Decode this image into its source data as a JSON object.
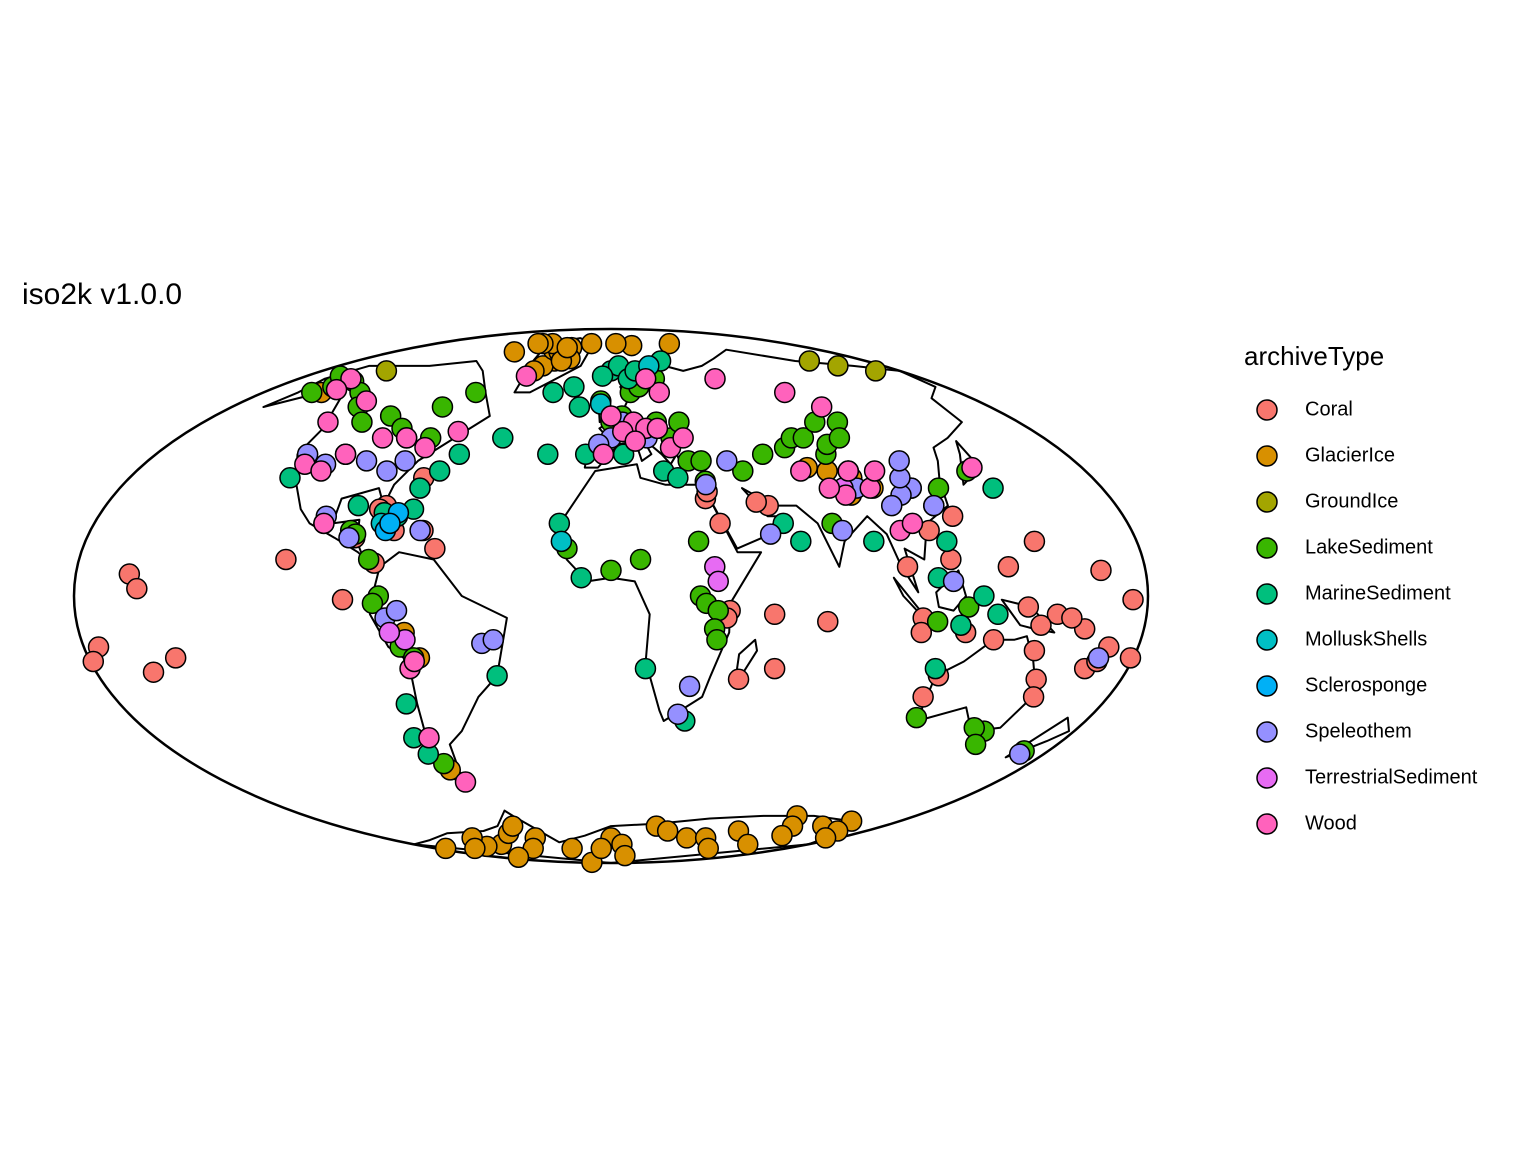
{
  "chart_data": {
    "type": "scatter",
    "projection": "mollweide",
    "title": "iso2k v1.0.0",
    "legend_title": "archiveType",
    "series": [
      {
        "name": "Coral",
        "color": "#F8766D",
        "lon": [
          -162,
          -159,
          -175,
          -150,
          -160,
          -110,
          -80,
          -75,
          -65,
          -88,
          -80,
          -90,
          -60,
          34,
          35,
          38,
          55,
          73,
          57,
          45,
          40,
          39,
          110,
          115,
          120,
          100,
          105,
          145,
          140,
          150,
          160,
          170,
          179,
          -179,
          175,
          165,
          105,
          115,
          113,
          150,
          145,
          153,
          120,
          130,
          134,
          145,
          165,
          168,
          155,
          56,
          52,
          -82,
          -70
        ],
        "lat": [
          6,
          2,
          -14,
          -17,
          -21,
          10,
          25,
          18,
          18,
          16,
          9,
          -1,
          13,
          27,
          29,
          20,
          -5,
          -7,
          -20,
          -23,
          -4,
          -6,
          18,
          10,
          22,
          8,
          -6,
          15,
          -3,
          -5,
          -9,
          -14,
          -17,
          -18,
          -1,
          7,
          -10,
          -22,
          -28,
          -23,
          -15,
          -28,
          -10,
          -12,
          8,
          -8,
          -20,
          -18,
          -6,
          25,
          26,
          24,
          33
        ]
      },
      {
        "name": "GlacierIce",
        "color": "#D89000",
        "lon": [
          -40,
          -38,
          -45,
          -50,
          -36,
          -43,
          -30,
          -48,
          -60,
          -20,
          -70,
          -35,
          -40,
          -75,
          -80,
          20,
          5,
          60,
          10,
          87,
          90,
          82,
          96,
          75,
          -70,
          -66,
          -71,
          -60,
          -80,
          -100,
          -120,
          -40,
          0,
          10,
          30,
          40,
          60,
          90,
          110,
          120,
          130,
          140,
          150,
          160,
          170,
          -170,
          -150,
          -90,
          -10,
          -110,
          75,
          100,
          125,
          20,
          -75,
          -65,
          -140,
          -150
        ],
        "lat": [
          72,
          75,
          70,
          77,
          78,
          76,
          73,
          68,
          80,
          80,
          80,
          72,
          78,
          80,
          76,
          79,
          80,
          80,
          46,
          28,
          33,
          35,
          30,
          36,
          -10,
          -17,
          -50,
          -75,
          -80,
          -78,
          -79,
          -80,
          -75,
          -78,
          -70,
          -72,
          -75,
          -72,
          -66,
          -70,
          -74,
          -70,
          -68,
          -72,
          -75,
          -80,
          -85,
          -89,
          -80,
          -75,
          -75,
          -80,
          -78,
          -84,
          -73,
          -70,
          -80,
          60
        ]
      },
      {
        "name": "GroundIce",
        "color": "#A3A500",
        "lon": [
          -140,
          140,
          150,
          165
        ],
        "lat": [
          68,
          72,
          70,
          68
        ]
      },
      {
        "name": "LakeSediment",
        "color": "#39B600",
        "lon": [
          -150,
          -145,
          -155,
          -160,
          -130,
          -120,
          -110,
          -100,
          -90,
          -80,
          -70,
          -75,
          -85,
          -100,
          -90,
          -88,
          -82,
          -78,
          -80,
          -72,
          -68,
          -72,
          10,
          15,
          25,
          20,
          5,
          0,
          20,
          25,
          30,
          -5,
          12,
          30,
          35,
          35,
          50,
          60,
          70,
          75,
          80,
          90,
          100,
          85,
          88,
          95,
          90,
          110,
          115,
          120,
          30,
          32,
          36,
          35,
          36,
          10,
          0,
          -15,
          30,
          77,
          145,
          140,
          115,
          170,
          135,
          110,
          120,
          147
        ],
        "lat": [
          62,
          64,
          60,
          66,
          60,
          55,
          50,
          52,
          48,
          55,
          60,
          45,
          45,
          20,
          18,
          17,
          10,
          0,
          -2,
          -14,
          -17,
          -48,
          60,
          62,
          65,
          68,
          52,
          50,
          50,
          45,
          50,
          57,
          47,
          38,
          38,
          32,
          35,
          40,
          42,
          45,
          45,
          50,
          50,
          40,
          43,
          45,
          35,
          30,
          25,
          30,
          0,
          -2,
          -4,
          -9,
          -12,
          10,
          7,
          13,
          15,
          20,
          -38,
          -37,
          -34,
          -44,
          35,
          -7,
          -3,
          -42
        ]
      },
      {
        "name": "MarineSediment",
        "color": "#00BF7D",
        "lon": [
          -30,
          -20,
          -15,
          -25,
          -10,
          -45,
          -60,
          -70,
          -65,
          0,
          5,
          -5,
          10,
          20,
          5,
          25,
          -75,
          -70,
          -80,
          -90,
          -18,
          -10,
          60,
          65,
          90,
          118,
          125,
          130,
          110,
          -120,
          -75,
          -78,
          -76,
          -40,
          12,
          28,
          140,
          115,
          113,
          35,
          15
        ],
        "lat": [
          60,
          62,
          55,
          40,
          40,
          45,
          40,
          30,
          35,
          68,
          70,
          66,
          65,
          35,
          40,
          33,
          22,
          24,
          23,
          25,
          20,
          5,
          20,
          15,
          15,
          -8,
          0,
          -5,
          5,
          33,
          -30,
          -40,
          -45,
          -22,
          -20,
          -35,
          30,
          15,
          -20,
          72,
          68
        ]
      },
      {
        "name": "MolluskShells",
        "color": "#00BFC4",
        "lon": [
          -5,
          25,
          -17,
          -80
        ],
        "lat": [
          56,
          70,
          15,
          20
        ]
      },
      {
        "name": "Sclerosponge",
        "color": "#00B0F6",
        "lon": [
          -75,
          -78,
          -77
        ],
        "lat": [
          23,
          18,
          20
        ]
      },
      {
        "name": "Speleothem",
        "color": "#9590FF",
        "lon": [
          -110,
          -105,
          -95,
          -85,
          -80,
          -120,
          -100,
          -90,
          -66,
          -44,
          -40,
          -76,
          -72,
          0,
          10,
          15,
          5,
          -5,
          35,
          45,
          55,
          28,
          25,
          110,
          105,
          108,
          115,
          100,
          90,
          112,
          80,
          115,
          170,
          168
        ],
        "lat": [
          37,
          40,
          38,
          35,
          38,
          40,
          22,
          16,
          18,
          -13,
          -12,
          -6,
          -4,
          45,
          46,
          45,
          50,
          43,
          31,
          38,
          17,
          -25,
          -33,
          30,
          28,
          33,
          25,
          25,
          30,
          38,
          18,
          4,
          -45,
          -17
        ]
      },
      {
        "name": "TerrestrialSediment",
        "color": "#E76BF3",
        "lon": [
          35,
          36,
          -70,
          -75,
          85
        ],
        "lat": [
          8,
          4,
          -12,
          -10,
          30
        ]
      },
      {
        "name": "Wood",
        "color": "#FF62BC",
        "lon": [
          -150,
          -145,
          -120,
          -118,
          -110,
          -105,
          -95,
          -85,
          -75,
          -65,
          -125,
          -100,
          -70,
          -68,
          -72,
          -68,
          -50,
          10,
          15,
          5,
          20,
          25,
          20,
          0,
          -3,
          24,
          30,
          10,
          90,
          100,
          60,
          90,
          95,
          85,
          100,
          80,
          100,
          105,
          138,
          72
        ],
        "lat": [
          65,
          61,
          57,
          37,
          35,
          40,
          45,
          45,
          42,
          47,
          50,
          20,
          -20,
          -18,
          -40,
          -54,
          66,
          50,
          48,
          47,
          48,
          60,
          65,
          52,
          40,
          42,
          45,
          44,
          60,
          55,
          65,
          35,
          30,
          28,
          35,
          30,
          18,
          20,
          36,
          35
        ]
      }
    ]
  }
}
